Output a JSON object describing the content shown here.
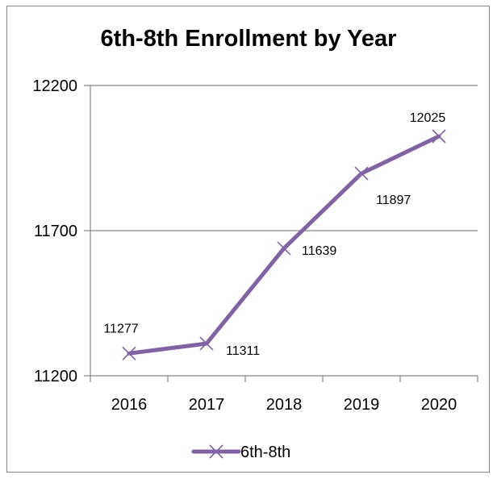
{
  "chart_data": {
    "type": "line",
    "title": "6th-8th Enrollment by Year",
    "xlabel": "",
    "ylabel": "",
    "categories": [
      "2016",
      "2017",
      "2018",
      "2019",
      "2020"
    ],
    "series": [
      {
        "name": "6th-8th",
        "values": [
          11277,
          11311,
          11639,
          11897,
          12025
        ],
        "data_labels": [
          "11277",
          "11311",
          "11639",
          "11897",
          "12025"
        ],
        "color": "#8064a2",
        "marker": "x"
      }
    ],
    "ylim": [
      11200,
      12200
    ],
    "yticks": [
      11200,
      11700,
      12200
    ],
    "ytick_labels": [
      "11200",
      "11700",
      "12200"
    ],
    "grid": true,
    "legend": "bottom"
  }
}
